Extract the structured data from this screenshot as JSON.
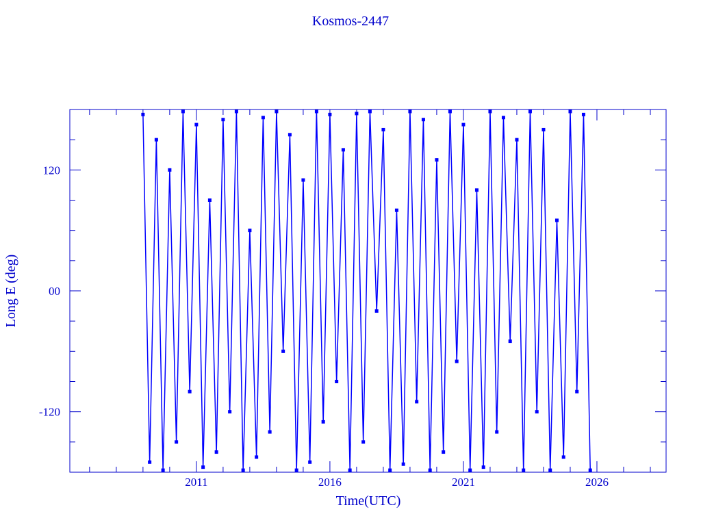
{
  "chart_data": {
    "type": "line",
    "title": "Kosmos-2447",
    "x_label": "Time(UTC)",
    "y_label": "Long E (deg)",
    "color": "#0000ff",
    "x": [
      2009,
      2009.25,
      2009.5,
      2009.75,
      2010,
      2010.25,
      2010.5,
      2010.75,
      2011,
      2011.25,
      2011.5,
      2011.75,
      2012,
      2012.25,
      2012.5,
      2012.75,
      2013,
      2013.25,
      2013.5,
      2013.75,
      2014,
      2014.25,
      2014.5,
      2014.75,
      2015,
      2015.25,
      2015.5,
      2015.75,
      2016,
      2016.25,
      2016.5,
      2016.75,
      2017,
      2017.25,
      2017.5,
      2017.75,
      2018,
      2018.25,
      2018.5,
      2018.75,
      2019,
      2019.25,
      2019.5,
      2019.75,
      2020,
      2020.25,
      2020.5,
      2020.75,
      2021,
      2021.25,
      2021.5,
      2021.75,
      2022,
      2022.25,
      2022.5,
      2022.75,
      2023,
      2023.25,
      2023.5,
      2023.75,
      2024,
      2024.25,
      2024.5,
      2024.75,
      2025,
      2025.25,
      2025.5,
      2025.75
    ],
    "values": [
      175,
      -170,
      150,
      -178,
      120,
      -150,
      178,
      -100,
      165,
      -175,
      90,
      -160,
      170,
      -120,
      178,
      -178,
      60,
      -165,
      172,
      -140,
      178,
      -60,
      155,
      -178,
      110,
      -170,
      178,
      -130,
      175,
      -90,
      140,
      -178,
      176,
      -150,
      178,
      -20,
      160,
      -178,
      80,
      -172,
      178,
      -110,
      170,
      -178,
      130,
      -160,
      178,
      -70,
      165,
      -178,
      100,
      -175,
      178,
      -140,
      172,
      -50,
      150,
      -178,
      178,
      -120,
      160,
      -178,
      70,
      -165,
      178,
      -100,
      175,
      -178
    ],
    "xlim": [
      2006.26,
      2028.59
    ],
    "xticks": [
      2011,
      2016,
      2021,
      2026
    ],
    "xminorticks": [
      2007,
      2008,
      2009,
      2010,
      2012,
      2013,
      2014,
      2015,
      2017,
      2018,
      2019,
      2020,
      2022,
      2023,
      2024,
      2025,
      2027,
      2028
    ],
    "ylim": [
      -180,
      180
    ],
    "yticks": [
      -120,
      {
        "value": 0,
        "label": "00"
      },
      120
    ],
    "yminorticks": [
      -150,
      -90,
      -60,
      -30,
      30,
      60,
      90,
      150
    ]
  }
}
